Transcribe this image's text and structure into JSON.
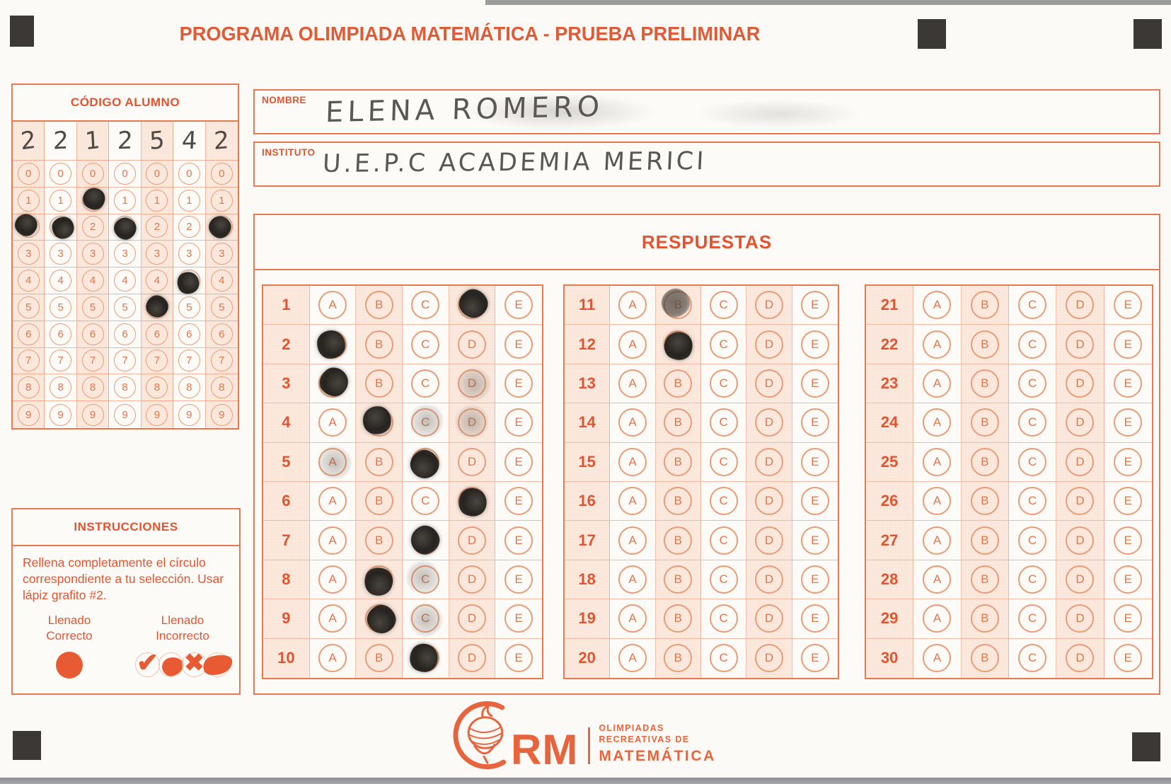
{
  "title": "PROGRAMA OLIMPIADA MATEMÁTICA  - PRUEBA PRELIMINAR",
  "colors": {
    "accent_text": "#e4532e",
    "line_orange": "#e57a50",
    "bubble_orange": "#eb9b74",
    "shade_pink": "#fbe9de",
    "pencil_dark": "#262320"
  },
  "student_code": {
    "header": "CÓDIGO ALUMNO",
    "digits": [
      "0",
      "1",
      "2",
      "3",
      "4",
      "5",
      "6",
      "7",
      "8",
      "9"
    ],
    "columns": [
      {
        "written": "2",
        "filled": "2"
      },
      {
        "written": "2",
        "filled": "2"
      },
      {
        "written": "1",
        "filled": "1"
      },
      {
        "written": "2",
        "filled": "2"
      },
      {
        "written": "5",
        "filled": "5"
      },
      {
        "written": "4",
        "filled": "4"
      },
      {
        "written": "2",
        "filled": "2"
      }
    ]
  },
  "fields": {
    "nombre": {
      "label": "NOMBRE",
      "value": "ELENA ROMERO"
    },
    "instituto": {
      "label": "INSTITUTO",
      "value": "U.E.P.C ACADEMIA MERICI"
    }
  },
  "respuestas": {
    "header": "RESPUESTAS",
    "options": [
      "A",
      "B",
      "C",
      "D",
      "E"
    ],
    "questions": [
      {
        "n": 1,
        "marks": [
          {
            "opt": "D",
            "style": "dark"
          }
        ]
      },
      {
        "n": 2,
        "marks": [
          {
            "opt": "A",
            "style": "dark"
          }
        ]
      },
      {
        "n": 3,
        "marks": [
          {
            "opt": "A",
            "style": "dark"
          },
          {
            "opt": "D",
            "style": "erased"
          }
        ]
      },
      {
        "n": 4,
        "marks": [
          {
            "opt": "B",
            "style": "dark"
          },
          {
            "opt": "C",
            "style": "erased"
          },
          {
            "opt": "D",
            "style": "erased"
          }
        ]
      },
      {
        "n": 5,
        "marks": [
          {
            "opt": "C",
            "style": "dark"
          },
          {
            "opt": "A",
            "style": "erased"
          }
        ]
      },
      {
        "n": 6,
        "marks": [
          {
            "opt": "D",
            "style": "dark"
          }
        ]
      },
      {
        "n": 7,
        "marks": [
          {
            "opt": "C",
            "style": "dark"
          }
        ]
      },
      {
        "n": 8,
        "marks": [
          {
            "opt": "B",
            "style": "dark"
          },
          {
            "opt": "C",
            "style": "erased"
          }
        ]
      },
      {
        "n": 9,
        "marks": [
          {
            "opt": "B",
            "style": "dark"
          },
          {
            "opt": "C",
            "style": "erased"
          }
        ]
      },
      {
        "n": 10,
        "marks": [
          {
            "opt": "C",
            "style": "dark"
          }
        ]
      },
      {
        "n": 11,
        "marks": [
          {
            "opt": "B",
            "style": "medium"
          }
        ]
      },
      {
        "n": 12,
        "marks": [
          {
            "opt": "B",
            "style": "dark"
          }
        ]
      },
      {
        "n": 13,
        "marks": []
      },
      {
        "n": 14,
        "marks": []
      },
      {
        "n": 15,
        "marks": []
      },
      {
        "n": 16,
        "marks": []
      },
      {
        "n": 17,
        "marks": []
      },
      {
        "n": 18,
        "marks": []
      },
      {
        "n": 19,
        "marks": []
      },
      {
        "n": 20,
        "marks": []
      },
      {
        "n": 21,
        "marks": []
      },
      {
        "n": 22,
        "marks": []
      },
      {
        "n": 23,
        "marks": []
      },
      {
        "n": 24,
        "marks": []
      },
      {
        "n": 25,
        "marks": []
      },
      {
        "n": 26,
        "marks": []
      },
      {
        "n": 27,
        "marks": []
      },
      {
        "n": 28,
        "marks": []
      },
      {
        "n": 29,
        "marks": []
      },
      {
        "n": 30,
        "marks": []
      }
    ]
  },
  "instructions": {
    "header": "INSTRUCCIONES",
    "body": "Rellena completamente el círculo correspondiente a tu selección. Usar lápiz grafito #2.",
    "correct": [
      "Llenado",
      "Correcto"
    ],
    "incorrect": [
      "Llenado",
      "Incorrecto"
    ]
  },
  "logo": {
    "letters": "RM",
    "lines": [
      "OLIMPIADAS",
      "RECREATIVAS DE",
      "MATEMÁTICA"
    ]
  }
}
